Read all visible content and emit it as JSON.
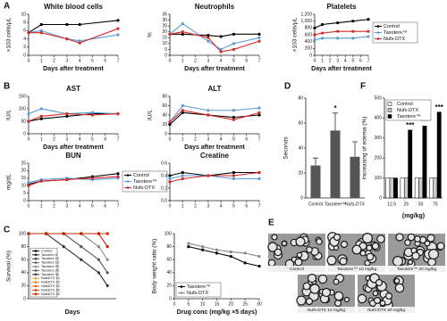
{
  "panel_labels": [
    "A",
    "B",
    "C",
    "D",
    "E",
    "F"
  ],
  "figure_e": {
    "captions": [
      "Control",
      "Taxotere™ 10 mg/kg",
      "Taxotere™ 20 mg/kg",
      "Nufs-DTX 10 mg/kg",
      "Nufs-DTX 20 mg/kg"
    ]
  },
  "chart_data": [
    {
      "type": "line",
      "title": "White blood cells",
      "y_label": "×103 cells/μL",
      "x_label": "Days after treatment",
      "x": [
        0,
        1,
        3,
        4,
        7
      ],
      "xlim": [
        0,
        7
      ],
      "xticks": [
        0,
        1,
        2,
        3,
        4,
        5,
        6,
        7
      ],
      "ylim": [
        0,
        10
      ],
      "yticks": [
        0,
        2,
        4,
        6,
        8,
        10
      ],
      "series": [
        {
          "color": "#000000",
          "values": [
            5.5,
            7.5,
            7.5,
            7.5,
            8.5
          ]
        },
        {
          "color": "#5b9bd5",
          "values": [
            5.5,
            6,
            4,
            3.5,
            5
          ]
        },
        {
          "color": "#d62728",
          "values": [
            5.5,
            5.5,
            4,
            3,
            6.5
          ]
        }
      ]
    },
    {
      "type": "line",
      "title": "Neutrophils",
      "y_label": "%",
      "x_label": "Days after treatment",
      "x": [
        0,
        1,
        3,
        4,
        5,
        7
      ],
      "xlim": [
        0,
        7
      ],
      "xticks": [
        0,
        1,
        2,
        3,
        4,
        5,
        6,
        7
      ],
      "ylim": [
        0,
        35
      ],
      "yticks": [
        0,
        5,
        10,
        15,
        20,
        25,
        30,
        35
      ],
      "series": [
        {
          "color": "#000000",
          "values": [
            18,
            18,
            17,
            16,
            18,
            18
          ]
        },
        {
          "color": "#5b9bd5",
          "values": [
            18,
            27,
            12,
            5,
            10,
            15
          ]
        },
        {
          "color": "#d62728",
          "values": [
            18,
            20,
            15,
            3,
            5,
            12
          ]
        }
      ]
    },
    {
      "type": "line",
      "title": "Platelets",
      "y_label": "×103 cells/μL",
      "x_label": "Days after treatment",
      "legend": "right",
      "x": [
        0,
        1,
        3,
        5,
        7
      ],
      "xlim": [
        0,
        7
      ],
      "xticks": [
        0,
        1,
        2,
        3,
        4,
        5,
        6,
        7
      ],
      "ylim": [
        0,
        1200
      ],
      "yticks": [
        0,
        200,
        400,
        600,
        800,
        {
          "value": 1000,
          "label": "1,000"
        },
        {
          "value": 1200,
          "label": "1,200"
        }
      ],
      "series": [
        {
          "name": "Control",
          "color": "#000000",
          "values": [
            800,
            900,
            950,
            1000,
            1050
          ]
        },
        {
          "name": "Taxotere™",
          "color": "#5b9bd5",
          "values": [
            450,
            500,
            500,
            500,
            550
          ]
        },
        {
          "name": "Nufs-DTX",
          "color": "#d62728",
          "values": [
            600,
            650,
            700,
            700,
            700
          ]
        }
      ]
    },
    {
      "type": "line",
      "title": "AST",
      "y_label": "IU/L",
      "x_label": "Days after treatment",
      "x": [
        0,
        1,
        3,
        5,
        7
      ],
      "xlim": [
        0,
        7
      ],
      "xticks": [
        0,
        1,
        2,
        3,
        4,
        5,
        6,
        7
      ],
      "ylim": [
        0,
        150
      ],
      "yticks": [
        0,
        50,
        100,
        150
      ],
      "series": [
        {
          "color": "#000000",
          "values": [
            50,
            60,
            70,
            80,
            80
          ]
        },
        {
          "color": "#5b9bd5",
          "values": [
            80,
            100,
            80,
            85,
            80
          ]
        },
        {
          "color": "#d62728",
          "values": [
            50,
            70,
            80,
            75,
            80
          ]
        }
      ]
    },
    {
      "type": "line",
      "title": "ALT",
      "y_label": "IU/L",
      "x_label": "Days after treatment",
      "x": [
        0,
        1,
        3,
        5,
        7
      ],
      "xlim": [
        0,
        7
      ],
      "xticks": [
        0,
        1,
        2,
        3,
        4,
        5,
        6,
        7
      ],
      "ylim": [
        0,
        80
      ],
      "yticks": [
        0,
        20,
        40,
        60,
        80
      ],
      "series": [
        {
          "color": "#000000",
          "values": [
            20,
            45,
            40,
            35,
            40
          ]
        },
        {
          "color": "#5b9bd5",
          "values": [
            25,
            60,
            50,
            50,
            55
          ]
        },
        {
          "color": "#d62728",
          "values": [
            25,
            50,
            40,
            30,
            45
          ]
        }
      ]
    },
    {
      "type": "line",
      "title": "BUN",
      "y_label": "mg/dL",
      "legend": "right",
      "x": [
        0,
        1,
        3,
        5,
        7
      ],
      "xlim": [
        0,
        7
      ],
      "xticks": [
        0,
        1,
        2,
        3,
        4,
        5,
        6,
        7
      ],
      "ylim": [
        0,
        25
      ],
      "yticks": [
        0,
        5,
        10,
        15,
        20,
        25
      ],
      "series": [
        {
          "name": "Control",
          "color": "#000000",
          "values": [
            11,
            13,
            14,
            16,
            18
          ]
        },
        {
          "name": "Taxotere™",
          "color": "#5b9bd5",
          "values": [
            12,
            14,
            15,
            14,
            15
          ]
        },
        {
          "name": "Nufs-DTX",
          "color": "#d62728",
          "values": [
            10,
            13,
            14,
            15,
            16
          ]
        }
      ]
    },
    {
      "type": "line",
      "title": "Creatine",
      "x": [
        0,
        1,
        3,
        5,
        7
      ],
      "xlim": [
        0,
        7
      ],
      "xticks": [
        0,
        1,
        2,
        3,
        4,
        5,
        6,
        7
      ],
      "ylim": [
        0,
        0.6
      ],
      "yticks": [
        {
          "value": 0,
          "label": "0.0"
        },
        0.2,
        0.4,
        0.6
      ],
      "series": [
        {
          "color": "#000000",
          "values": [
            0.4,
            0.45,
            0.4,
            0.45,
            0.45
          ]
        },
        {
          "color": "#5b9bd5",
          "values": [
            0.35,
            0.4,
            0.4,
            0.35,
            0.35
          ]
        },
        {
          "color": "#d62728",
          "values": [
            0.3,
            0.35,
            0.4,
            0.4,
            0.45
          ]
        }
      ]
    },
    {
      "type": "line",
      "y_label": "Survival (%)",
      "x_label": "Days",
      "legend": "lower-left",
      "x": [
        0,
        2,
        4,
        6,
        8,
        9
      ],
      "xlim": [
        0,
        10
      ],
      "ylim": [
        0,
        100
      ],
      "yticks": [
        0,
        20,
        40,
        60,
        80,
        100
      ],
      "series": [
        {
          "name": "Control",
          "color": "#000000",
          "values": [
            100,
            100,
            100,
            100,
            100,
            100
          ]
        },
        {
          "name": "Taxotere 5",
          "color": "#222222",
          "values": [
            100,
            100,
            100,
            100,
            100,
            100
          ]
        },
        {
          "name": "Taxotere 10",
          "color": "#444444",
          "values": [
            100,
            100,
            100,
            100,
            100,
            100
          ]
        },
        {
          "name": "Taxotere 15",
          "color": "#666666",
          "values": [
            100,
            100,
            100,
            100,
            100,
            100
          ]
        },
        {
          "name": "Taxotere 20",
          "color": "#888888",
          "values": [
            100,
            100,
            100,
            100,
            80,
            60
          ]
        },
        {
          "name": "Taxotere 25",
          "color": "#555555",
          "values": [
            100,
            100,
            100,
            80,
            60,
            40
          ]
        },
        {
          "name": "Taxotere 30",
          "color": "#333333",
          "values": [
            100,
            100,
            80,
            60,
            40,
            20
          ]
        },
        {
          "name": "NufsDTX 10",
          "color": "#f0a030",
          "values": [
            100,
            100,
            100,
            100,
            100,
            100
          ]
        },
        {
          "name": "NufsDTX 15",
          "color": "#e88020",
          "values": [
            100,
            100,
            100,
            100,
            100,
            100
          ]
        },
        {
          "name": "NufsDTX 20",
          "color": "#e06010",
          "values": [
            100,
            100,
            100,
            100,
            100,
            100
          ]
        },
        {
          "name": "NufsDTX 25",
          "color": "#d04010",
          "values": [
            100,
            100,
            100,
            100,
            100,
            100
          ]
        },
        {
          "name": "NufsDTX 30",
          "color": "#c02000",
          "values": [
            100,
            100,
            100,
            100,
            100,
            80
          ]
        }
      ]
    },
    {
      "type": "line",
      "y_label": "Body weight ratio (%)",
      "x_label": "Drug conc (mg/kg ×5 days)",
      "legend": "lower-left",
      "x": [
        5,
        10,
        15,
        20,
        25,
        30
      ],
      "xlim": [
        0,
        30
      ],
      "xticks": [
        0,
        5,
        10,
        15,
        20,
        25,
        30
      ],
      "ylim": [
        0,
        100
      ],
      "yticks": [
        0,
        20,
        40,
        60,
        80,
        100
      ],
      "series": [
        {
          "name": "Taxotere™",
          "color": "#000000",
          "values": [
            80,
            75,
            70,
            65,
            55,
            50
          ]
        },
        {
          "name": "Nufs-DTX",
          "color": "#888888",
          "values": [
            85,
            80,
            75,
            72,
            70,
            65
          ]
        }
      ]
    },
    {
      "type": "bar",
      "y_label": "Seconds",
      "categories": [
        "Control",
        "Taxotere™",
        "Nufs-DTX"
      ],
      "values": [
        26,
        54,
        33
      ],
      "errors": [
        6,
        14,
        12
      ],
      "annotations": [
        null,
        "*",
        null
      ],
      "color": "#555555",
      "ylim": [
        0,
        80
      ],
      "yticks": [
        0,
        20,
        40,
        60,
        80
      ]
    },
    {
      "type": "bar",
      "y_label": "Increasing of edema (%)",
      "x_label": "(mg/kg)",
      "categories": [
        "12.5",
        "25",
        "50",
        "75"
      ],
      "annotations": [
        null,
        "***",
        "***",
        "***"
      ],
      "legend": "upper-left",
      "ylim": [
        0,
        500
      ],
      "yticks": [
        0,
        100,
        200,
        300,
        400,
        500
      ],
      "series": [
        {
          "name": "Control",
          "color": "#ffffff",
          "values": [
            100,
            100,
            100,
            100
          ]
        },
        {
          "name": "Nufs-DTX",
          "color": "#cccccc",
          "values": [
            100,
            100,
            100,
            100
          ]
        },
        {
          "name": "Taxotere™",
          "color": "#000000",
          "values": [
            100,
            340,
            360,
            430
          ]
        }
      ]
    }
  ]
}
